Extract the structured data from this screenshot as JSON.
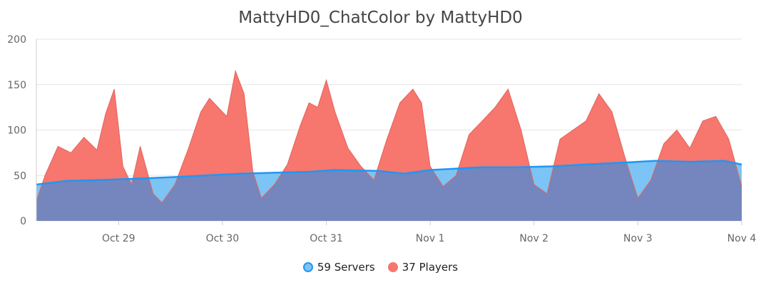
{
  "colors": {
    "servers_fill": "#7cc4f5",
    "servers_line": "#2196f3",
    "players_fill": "#f7766e",
    "players_line": "#e0665e",
    "overlap_fill": "#7486bd",
    "grid": "#e6e6e6",
    "axis": "#cccccc"
  },
  "chart_data": {
    "type": "area",
    "title": "MattyHD0_ChatColor by MattyHD0",
    "xlabel": "",
    "ylabel": "",
    "ylim": [
      0,
      200
    ],
    "y_ticks": [
      "0",
      "50",
      "100",
      "150",
      "200"
    ],
    "x_range": [
      "2018-10-28 05:00",
      "2018-11-04 00:00"
    ],
    "x_ticks": [
      {
        "date": "2018-10-29",
        "label": "Oct 29"
      },
      {
        "date": "2018-10-30",
        "label": "Oct 30"
      },
      {
        "date": "2018-10-31",
        "label": "Oct 31"
      },
      {
        "date": "2018-11-01",
        "label": "Nov 1"
      },
      {
        "date": "2018-11-02",
        "label": "Nov 2"
      },
      {
        "date": "2018-11-03",
        "label": "Nov 3"
      },
      {
        "date": "2018-11-04",
        "label": "Nov 4"
      }
    ],
    "grid": true,
    "legend_position": "bottom-center",
    "series": [
      {
        "name": "59 Servers",
        "points": [
          [
            "2018-10-28 05:00",
            40
          ],
          [
            "2018-10-28 12:00",
            44
          ],
          [
            "2018-10-28 20:00",
            45
          ],
          [
            "2018-10-29 02:00",
            46
          ],
          [
            "2018-10-29 12:00",
            48
          ],
          [
            "2018-10-29 20:00",
            50
          ],
          [
            "2018-10-30 04:00",
            52
          ],
          [
            "2018-10-30 12:00",
            53
          ],
          [
            "2018-10-30 20:00",
            54
          ],
          [
            "2018-10-31 02:00",
            56
          ],
          [
            "2018-10-31 12:00",
            55
          ],
          [
            "2018-10-31 18:00",
            52
          ],
          [
            "2018-11-01 00:00",
            56
          ],
          [
            "2018-11-01 12:00",
            59
          ],
          [
            "2018-11-01 20:00",
            59
          ],
          [
            "2018-11-02 04:00",
            60
          ],
          [
            "2018-11-02 12:00",
            62
          ],
          [
            "2018-11-02 20:00",
            64
          ],
          [
            "2018-11-03 04:00",
            66
          ],
          [
            "2018-11-03 12:00",
            65
          ],
          [
            "2018-11-03 20:00",
            66
          ],
          [
            "2018-11-04 00:00",
            62
          ]
        ]
      },
      {
        "name": "37 Players",
        "points": [
          [
            "2018-10-28 05:00",
            22
          ],
          [
            "2018-10-28 07:00",
            50
          ],
          [
            "2018-10-28 10:00",
            82
          ],
          [
            "2018-10-28 13:00",
            75
          ],
          [
            "2018-10-28 16:00",
            92
          ],
          [
            "2018-10-28 19:00",
            78
          ],
          [
            "2018-10-28 21:00",
            118
          ],
          [
            "2018-10-28 23:00",
            145
          ],
          [
            "2018-10-29 01:00",
            60
          ],
          [
            "2018-10-29 03:00",
            40
          ],
          [
            "2018-10-29 05:00",
            82
          ],
          [
            "2018-10-29 08:00",
            30
          ],
          [
            "2018-10-29 10:00",
            20
          ],
          [
            "2018-10-29 13:00",
            40
          ],
          [
            "2018-10-29 16:00",
            78
          ],
          [
            "2018-10-29 19:00",
            120
          ],
          [
            "2018-10-29 21:00",
            135
          ],
          [
            "2018-10-29 23:00",
            125
          ],
          [
            "2018-10-30 01:00",
            115
          ],
          [
            "2018-10-30 03:00",
            165
          ],
          [
            "2018-10-30 05:00",
            140
          ],
          [
            "2018-10-30 07:00",
            55
          ],
          [
            "2018-10-30 09:00",
            25
          ],
          [
            "2018-10-30 12:00",
            40
          ],
          [
            "2018-10-30 15:00",
            62
          ],
          [
            "2018-10-30 18:00",
            105
          ],
          [
            "2018-10-30 20:00",
            130
          ],
          [
            "2018-10-30 22:00",
            125
          ],
          [
            "2018-10-31 00:00",
            155
          ],
          [
            "2018-10-31 02:00",
            120
          ],
          [
            "2018-10-31 05:00",
            80
          ],
          [
            "2018-10-31 08:00",
            60
          ],
          [
            "2018-10-31 11:00",
            45
          ],
          [
            "2018-10-31 14:00",
            90
          ],
          [
            "2018-10-31 17:00",
            130
          ],
          [
            "2018-10-31 20:00",
            145
          ],
          [
            "2018-10-31 22:00",
            130
          ],
          [
            "2018-11-01 00:00",
            60
          ],
          [
            "2018-11-01 03:00",
            38
          ],
          [
            "2018-11-01 06:00",
            50
          ],
          [
            "2018-11-01 09:00",
            95
          ],
          [
            "2018-11-01 12:00",
            110
          ],
          [
            "2018-11-01 15:00",
            125
          ],
          [
            "2018-11-01 18:00",
            145
          ],
          [
            "2018-11-01 21:00",
            100
          ],
          [
            "2018-11-02 00:00",
            40
          ],
          [
            "2018-11-02 03:00",
            30
          ],
          [
            "2018-11-02 06:00",
            90
          ],
          [
            "2018-11-02 09:00",
            100
          ],
          [
            "2018-11-02 12:00",
            110
          ],
          [
            "2018-11-02 15:00",
            140
          ],
          [
            "2018-11-02 18:00",
            120
          ],
          [
            "2018-11-02 21:00",
            70
          ],
          [
            "2018-11-03 00:00",
            25
          ],
          [
            "2018-11-03 03:00",
            45
          ],
          [
            "2018-11-03 06:00",
            85
          ],
          [
            "2018-11-03 09:00",
            100
          ],
          [
            "2018-11-03 12:00",
            80
          ],
          [
            "2018-11-03 15:00",
            110
          ],
          [
            "2018-11-03 18:00",
            115
          ],
          [
            "2018-11-03 21:00",
            90
          ],
          [
            "2018-11-04 00:00",
            38
          ]
        ]
      }
    ]
  }
}
